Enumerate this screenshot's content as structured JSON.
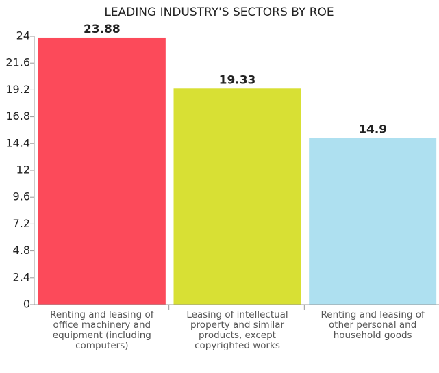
{
  "chart_data": {
    "type": "bar",
    "title": "LEADING INDUSTRY'S SECTORS BY ROE",
    "categories": [
      "Renting and leasing of office machinery and equipment (including computers)",
      "Leasing of intellectual property and similar products, except copyrighted works",
      "Renting and leasing of other personal and household goods"
    ],
    "values": [
      23.88,
      19.33,
      14.9
    ],
    "colors": [
      "#fc4a5a",
      "#d8e034",
      "#aee0f0"
    ],
    "ylim": [
      0,
      24
    ],
    "yticks": [
      0,
      2.4,
      4.8,
      7.2,
      9.6,
      12,
      14.4,
      16.8,
      19.2,
      21.6,
      24
    ]
  }
}
